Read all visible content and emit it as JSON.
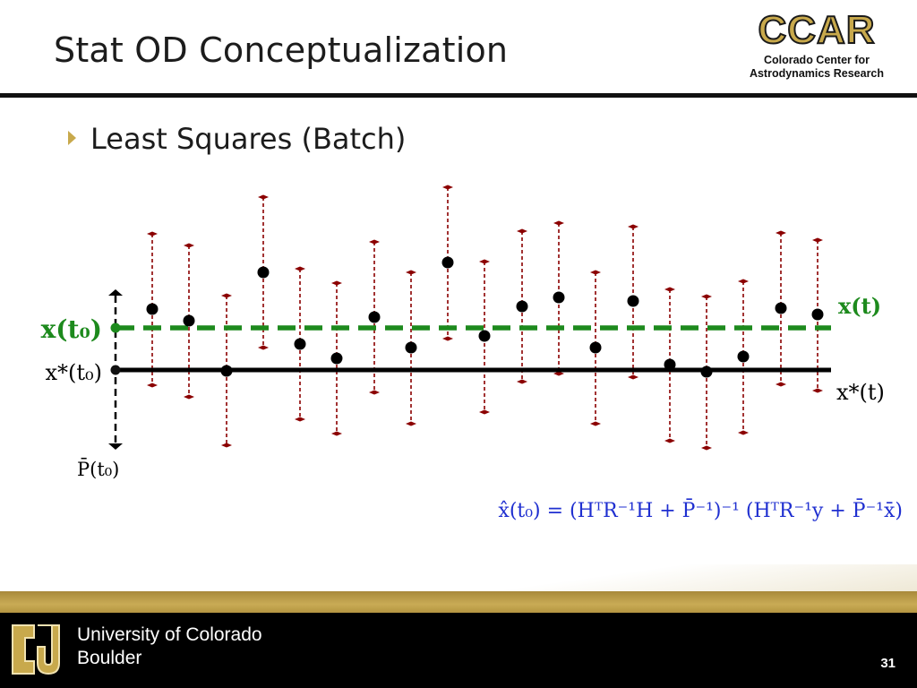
{
  "slide": {
    "title": "Stat OD Conceptualization",
    "bullet": "Least Squares (Batch)",
    "page_number": "31"
  },
  "logo": {
    "word": "CCAR",
    "sub_line1": "Colorado Center for",
    "sub_line2": "Astrodynamics Research"
  },
  "footer": {
    "line1": "University of Colorado",
    "line2": "Boulder"
  },
  "diagram": {
    "label_x_t0": "x(t₀)",
    "label_xstar_t0": "x*(t₀)",
    "label_x_t": "x(t)",
    "label_xstar_t": "x*(t)",
    "label_pbar_t0": "P̄(t₀)",
    "colors": {
      "estimate_line": "#1d8a1d",
      "reference_line": "#000000",
      "error_bar": "#8b0000",
      "marker": "#000000"
    }
  },
  "formula": {
    "text": "x̂(t₀) = (HᵀR⁻¹H + P̄⁻¹)⁻¹ (HᵀR⁻¹y + P̄⁻¹x̄)",
    "color": "#1f2fd0"
  }
}
